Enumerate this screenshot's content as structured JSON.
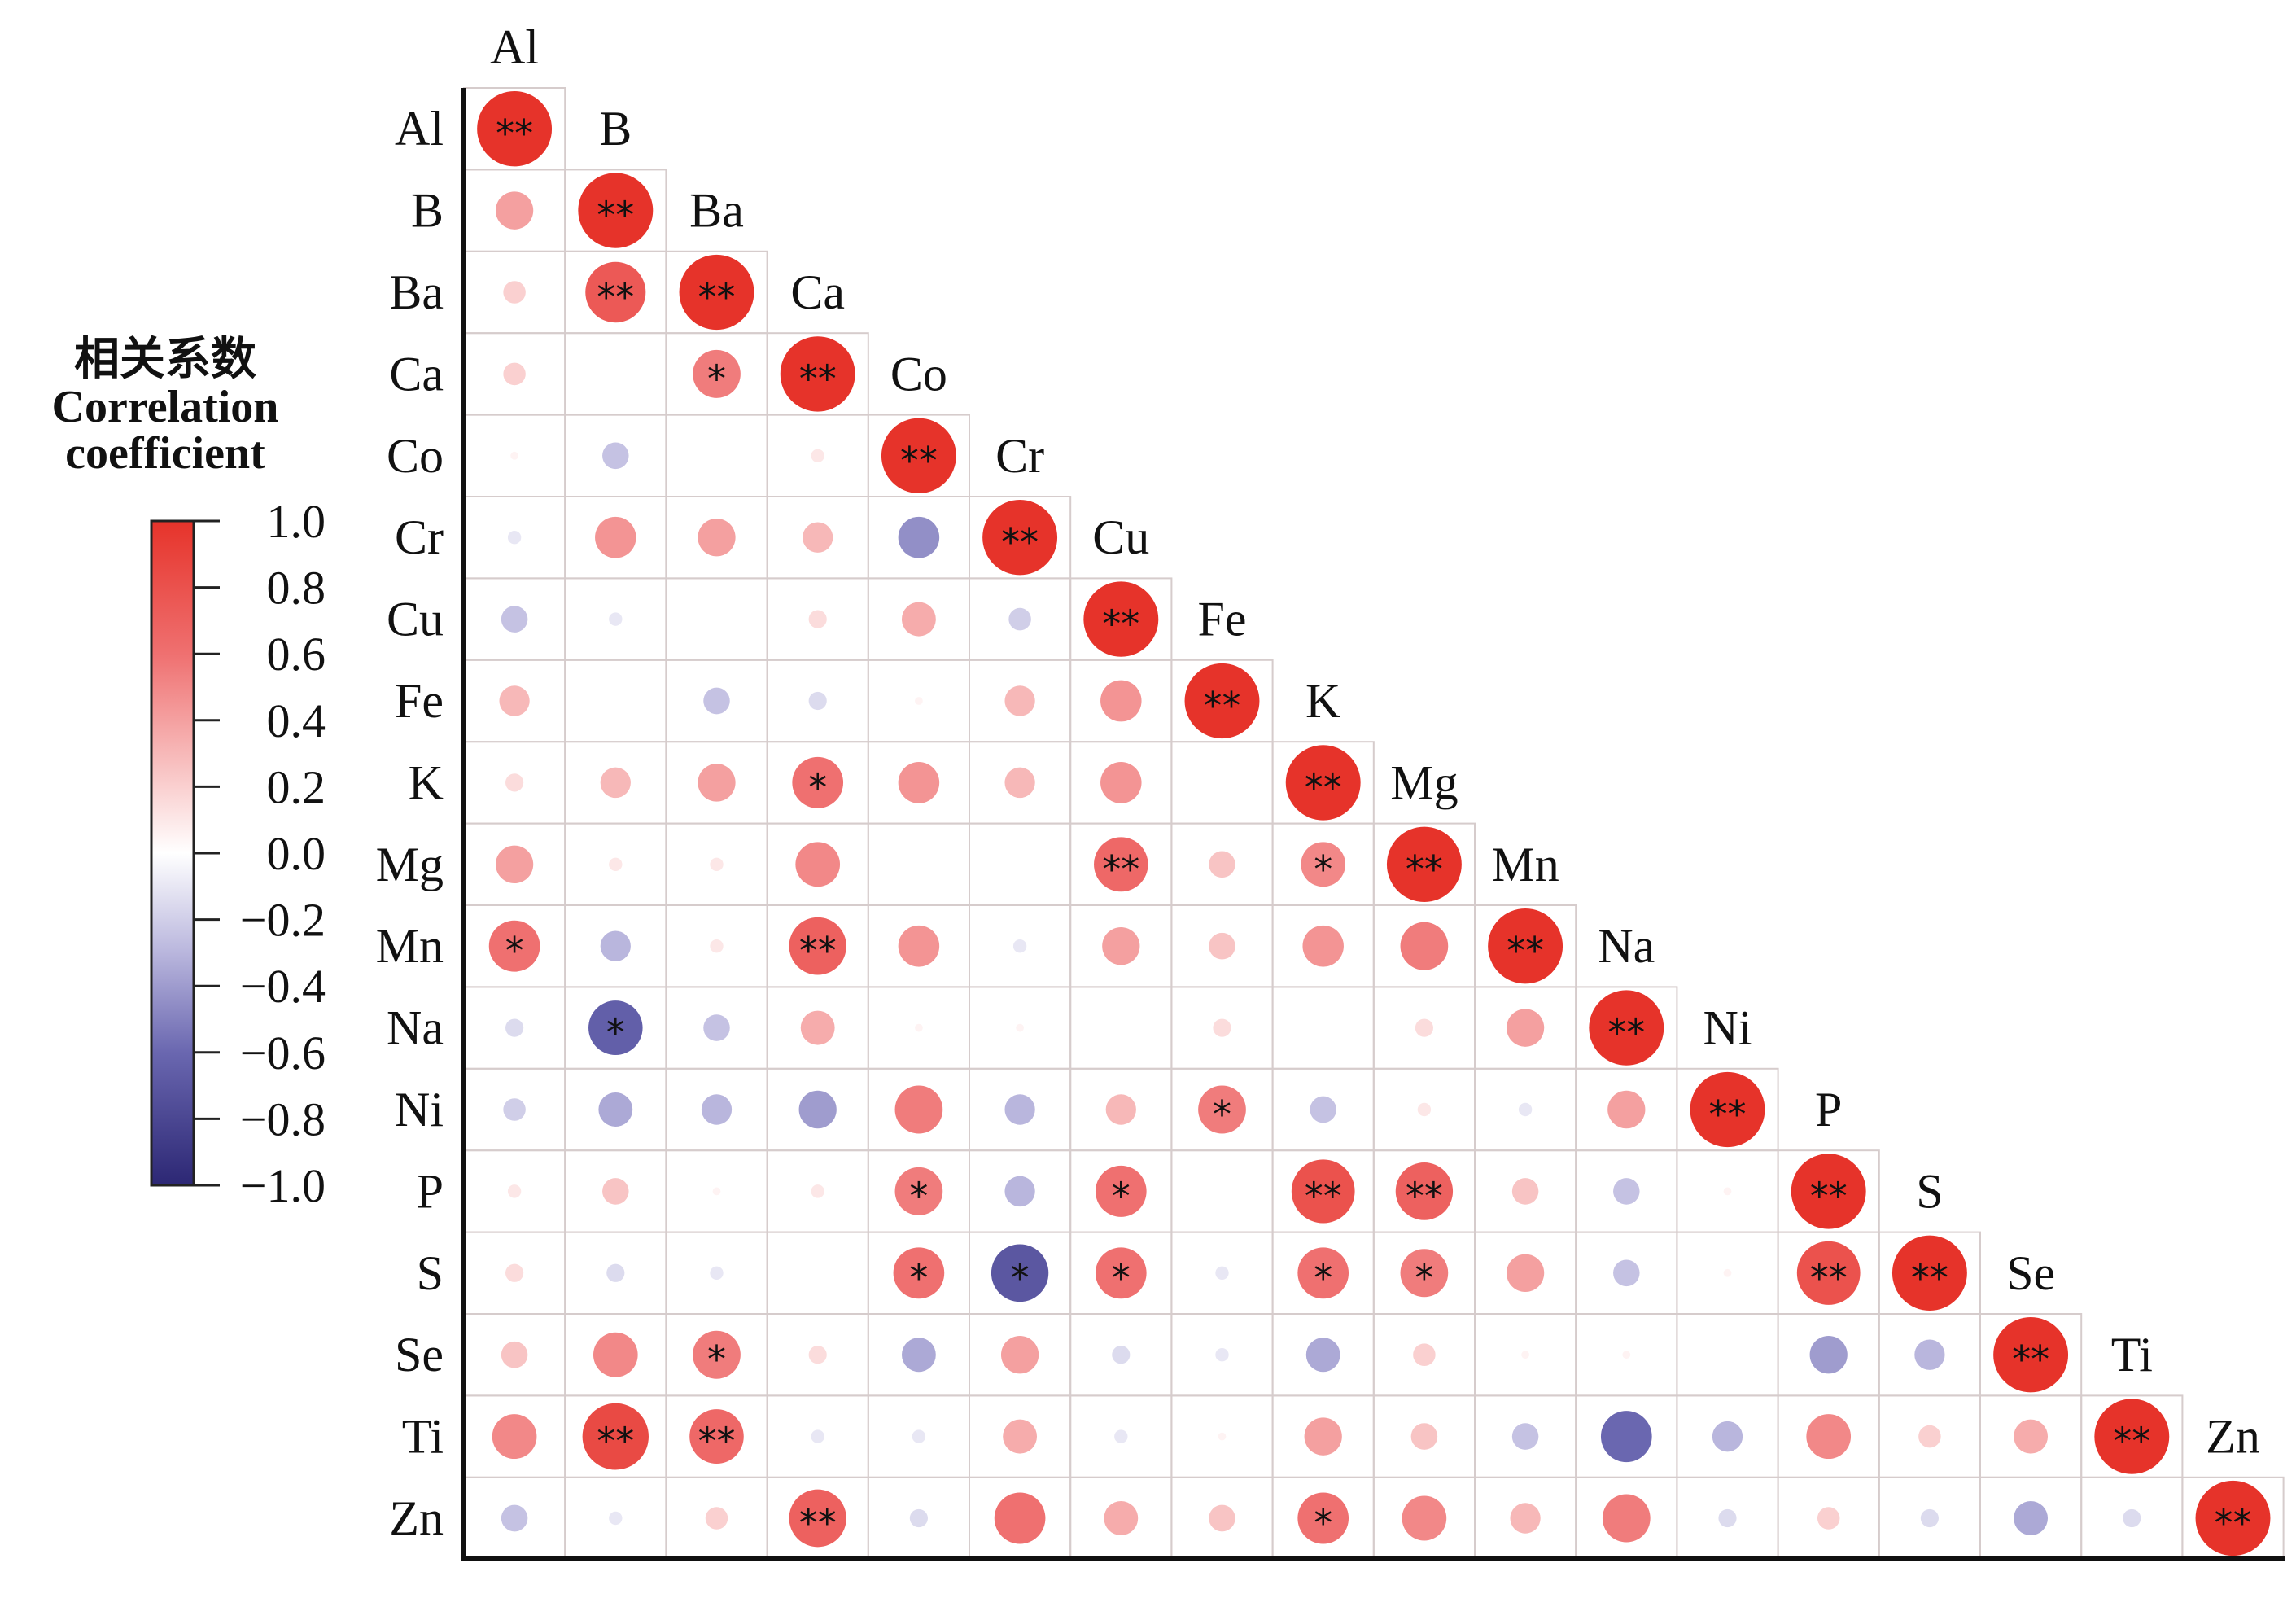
{
  "chart_data": {
    "type": "heatmap",
    "subtype": "correlation-circle-lower-triangle",
    "legend_title": [
      "相关系数",
      "Correlation",
      "coefficient"
    ],
    "colorbar_ticks": [
      "1.0",
      "0.8",
      "0.6",
      "0.4",
      "0.2",
      "0.0",
      "−0.2",
      "−0.4",
      "−0.6",
      "−0.8",
      "−1.0"
    ],
    "colorbar_range": [
      -1,
      1
    ],
    "legend_placement": "left",
    "colors": {
      "negative": "#2c2774",
      "neutral": "#ffffff",
      "positive": "#e6332a"
    },
    "variables": [
      "Al",
      "B",
      "Ba",
      "Ca",
      "Co",
      "Cr",
      "Cu",
      "Fe",
      "K",
      "Mg",
      "Mn",
      "Na",
      "Ni",
      "P",
      "S",
      "Se",
      "Ti",
      "Zn"
    ],
    "lower_triangle_r": [
      [
        1.0
      ],
      [
        0.4,
        1.0
      ],
      [
        0.2,
        0.75,
        1.0
      ],
      [
        0.2,
        0.0,
        0.55,
        1.0
      ],
      [
        0.05,
        -0.25,
        0.0,
        0.1,
        1.0
      ],
      [
        -0.1,
        0.45,
        0.4,
        0.3,
        -0.45,
        1.0
      ],
      [
        -0.25,
        -0.1,
        0.0,
        0.15,
        0.35,
        -0.2,
        1.0
      ],
      [
        0.3,
        0.0,
        -0.25,
        -0.15,
        0.05,
        0.3,
        0.45,
        1.0
      ],
      [
        0.15,
        0.3,
        0.4,
        0.6,
        0.45,
        0.3,
        0.45,
        0.0,
        1.0
      ],
      [
        0.4,
        0.1,
        0.1,
        0.5,
        0.0,
        0.0,
        0.65,
        0.25,
        0.5,
        1.0
      ],
      [
        0.6,
        -0.3,
        0.1,
        0.7,
        0.45,
        -0.1,
        0.4,
        0.25,
        0.45,
        0.55,
        1.0
      ],
      [
        -0.15,
        -0.65,
        -0.25,
        0.35,
        0.05,
        0.05,
        0.0,
        0.15,
        0.0,
        0.15,
        0.4,
        1.0
      ],
      [
        -0.2,
        -0.35,
        -0.3,
        -0.4,
        0.55,
        -0.3,
        0.3,
        0.55,
        -0.25,
        0.1,
        -0.1,
        0.4,
        1.0
      ],
      [
        0.1,
        0.25,
        0.05,
        0.1,
        0.55,
        -0.3,
        0.6,
        0.0,
        0.8,
        0.7,
        0.25,
        -0.25,
        0.05,
        1.0
      ],
      [
        0.15,
        -0.15,
        -0.1,
        0.0,
        0.6,
        -0.7,
        0.6,
        -0.1,
        0.6,
        0.55,
        0.4,
        -0.25,
        0.05,
        0.8,
        1.0
      ],
      [
        0.25,
        0.5,
        0.55,
        0.15,
        -0.35,
        0.4,
        -0.15,
        -0.1,
        -0.35,
        0.2,
        0.05,
        0.05,
        0.0,
        -0.4,
        -0.3,
        1.0
      ],
      [
        0.5,
        0.85,
        0.65,
        -0.1,
        -0.1,
        0.35,
        -0.1,
        0.05,
        0.4,
        0.25,
        -0.25,
        -0.6,
        -0.3,
        0.5,
        0.2,
        0.35,
        1.0
      ],
      [
        -0.25,
        -0.1,
        0.2,
        0.7,
        -0.15,
        0.6,
        0.35,
        0.25,
        0.6,
        0.5,
        0.3,
        0.55,
        -0.15,
        0.2,
        -0.15,
        -0.35,
        -0.15,
        1.0
      ]
    ],
    "lower_triangle_sig": [
      [
        "**"
      ],
      [
        "",
        "**"
      ],
      [
        "",
        "**",
        "**"
      ],
      [
        "",
        "",
        "*",
        "**"
      ],
      [
        "",
        "",
        "",
        "",
        "**"
      ],
      [
        "",
        "",
        "",
        "",
        "",
        "**"
      ],
      [
        "",
        "",
        "",
        "",
        "",
        "",
        "**"
      ],
      [
        "",
        "",
        "",
        "",
        "",
        "",
        "",
        "**"
      ],
      [
        "",
        "",
        "",
        "*",
        "",
        "",
        "",
        "",
        "**"
      ],
      [
        "",
        "",
        "",
        "",
        "",
        "",
        "**",
        "",
        "*",
        "**"
      ],
      [
        "*",
        "",
        "",
        "**",
        "",
        "",
        "",
        "",
        "",
        "",
        "**"
      ],
      [
        "",
        "*",
        "",
        "",
        "",
        "",
        "",
        "",
        "",
        "",
        "",
        "**"
      ],
      [
        "",
        "",
        "",
        "",
        "",
        "",
        "",
        "*",
        "",
        "",
        "",
        "",
        "**"
      ],
      [
        "",
        "",
        "",
        "",
        "*",
        "",
        "*",
        "",
        "**",
        "**",
        "",
        "",
        "",
        "**"
      ],
      [
        "",
        "",
        "",
        "",
        "*",
        "*",
        "*",
        "",
        "*",
        "*",
        "",
        "",
        "",
        "**",
        "**"
      ],
      [
        "",
        "",
        "*",
        "",
        "",
        "",
        "",
        "",
        "",
        "",
        "",
        "",
        "",
        "",
        "",
        "**"
      ],
      [
        "",
        "**",
        "**",
        "",
        "",
        "",
        "",
        "",
        "",
        "",
        "",
        "",
        "",
        "",
        "",
        "",
        "**"
      ],
      [
        "",
        "",
        "",
        "**",
        "",
        "",
        "",
        "",
        "*",
        "",
        "",
        "",
        "",
        "",
        "",
        "",
        "",
        "**"
      ]
    ]
  }
}
